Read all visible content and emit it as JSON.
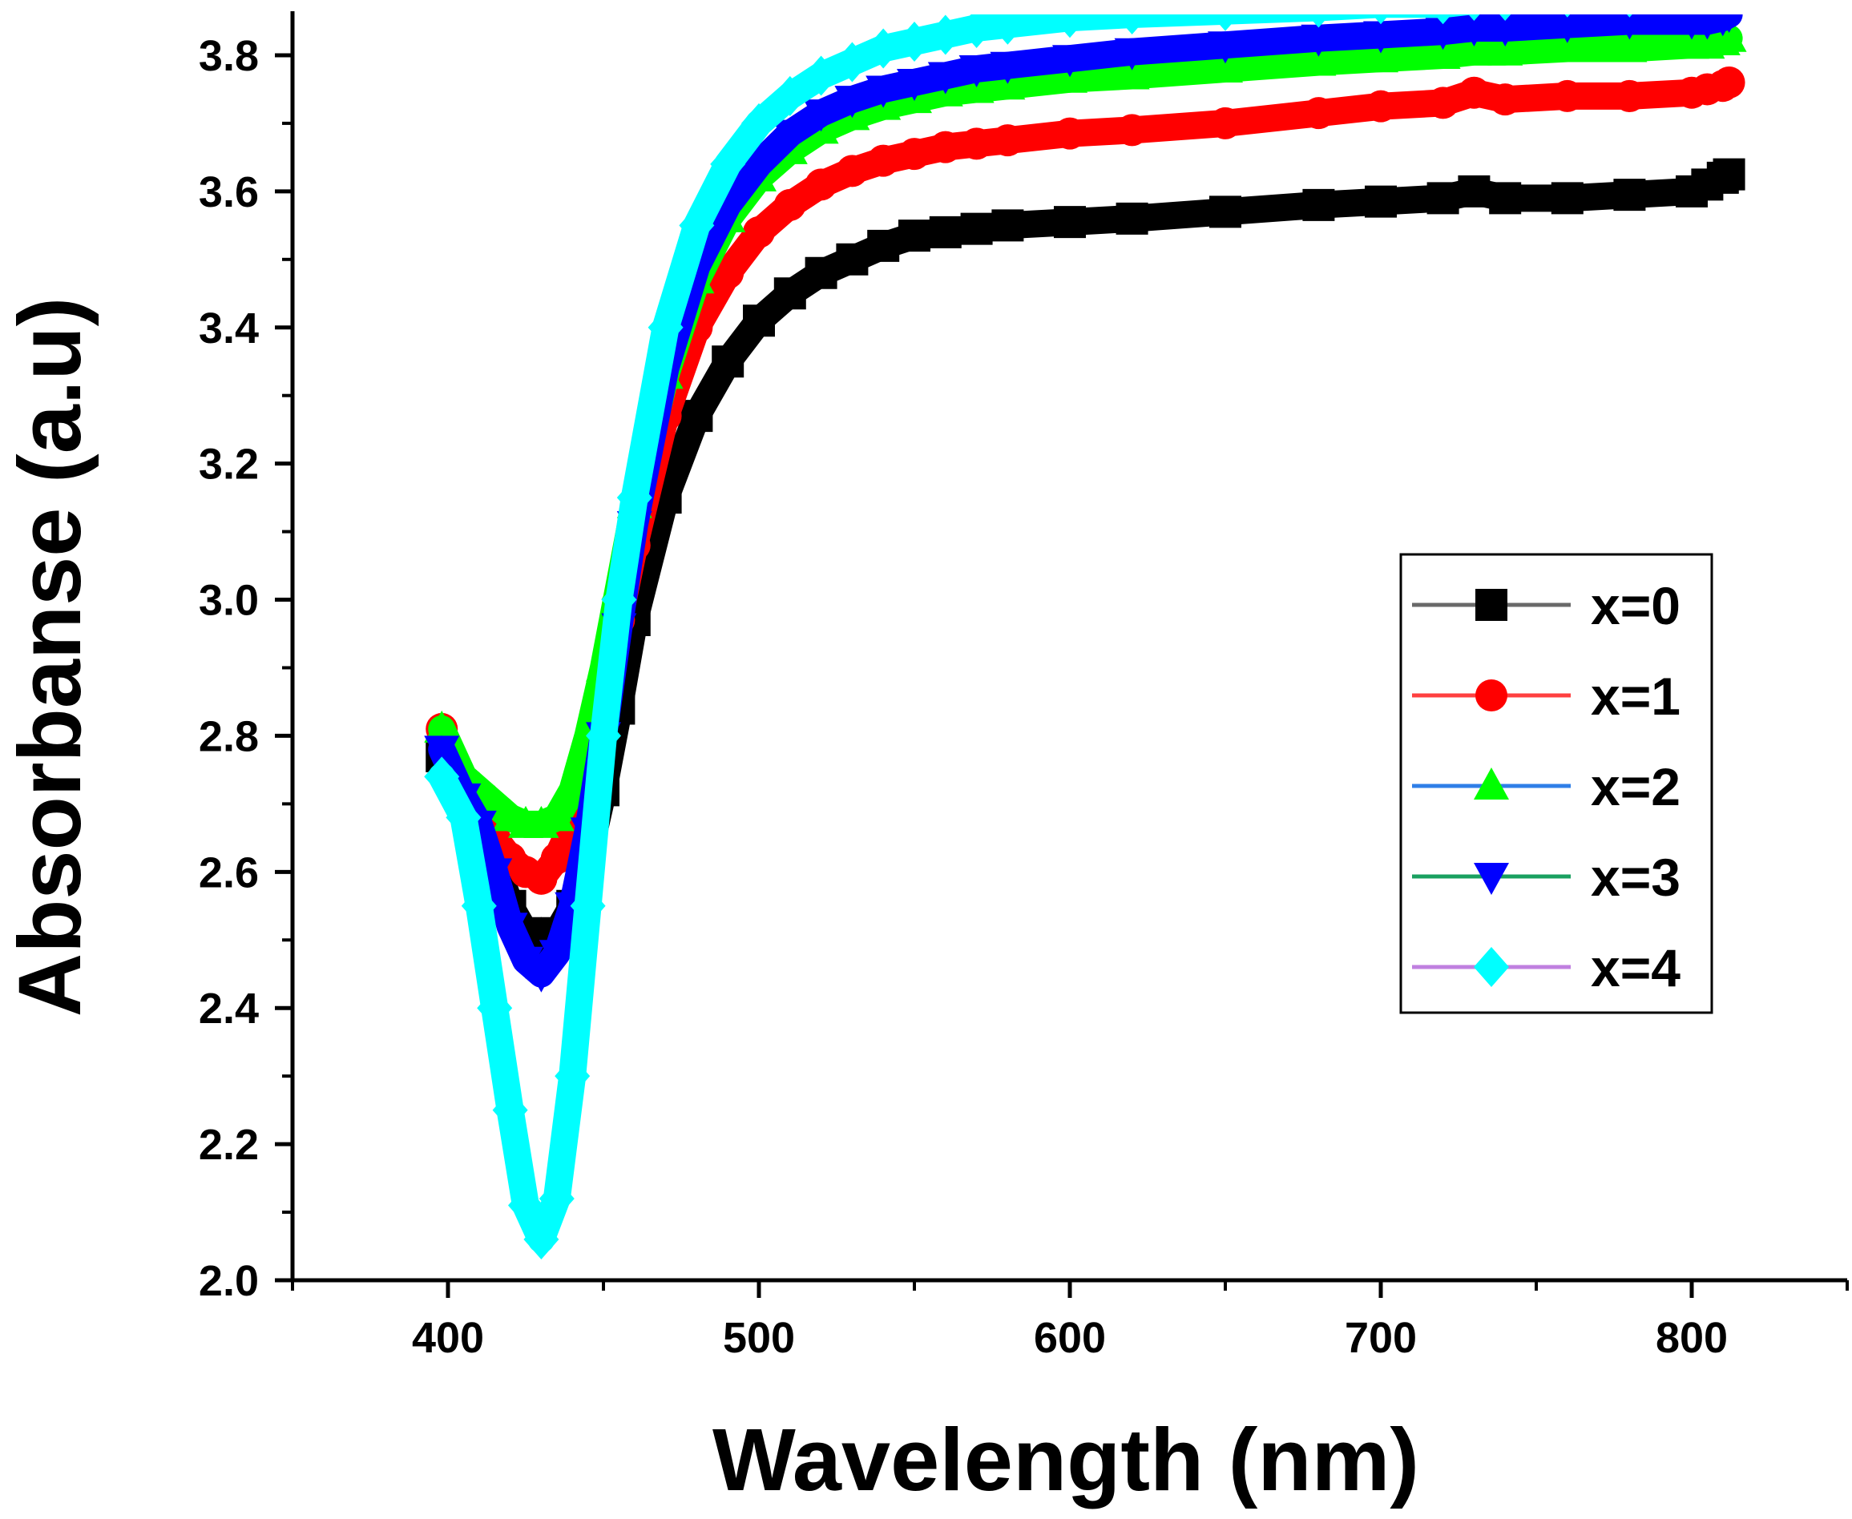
{
  "chart_data": {
    "type": "line",
    "xlabel": "Wavelength (nm)",
    "ylabel": "Absorbanse (a.u)",
    "xlim": [
      350,
      850
    ],
    "ylim": [
      2.0,
      3.86
    ],
    "xticks": [
      "400",
      "500",
      "600",
      "700",
      "800"
    ],
    "yticks": [
      "2.0",
      "2.2",
      "2.4",
      "2.6",
      "2.8",
      "3.0",
      "3.2",
      "3.4",
      "3.6",
      "3.8"
    ],
    "legend_position": "right",
    "x": [
      398,
      405,
      410,
      415,
      420,
      425,
      430,
      435,
      440,
      445,
      450,
      455,
      460,
      470,
      480,
      490,
      500,
      510,
      520,
      530,
      540,
      550,
      560,
      570,
      580,
      600,
      620,
      650,
      680,
      700,
      720,
      730,
      740,
      760,
      780,
      800,
      805,
      810,
      812
    ],
    "series": [
      {
        "name": "x=0",
        "color": "#000000",
        "marker": "square",
        "values": [
          2.77,
          2.72,
          2.68,
          2.62,
          2.55,
          2.51,
          2.49,
          2.51,
          2.55,
          2.62,
          2.72,
          2.84,
          2.97,
          3.15,
          3.27,
          3.35,
          3.41,
          3.45,
          3.48,
          3.5,
          3.52,
          3.535,
          3.54,
          3.545,
          3.55,
          3.555,
          3.56,
          3.57,
          3.58,
          3.585,
          3.59,
          3.6,
          3.59,
          3.59,
          3.595,
          3.6,
          3.61,
          3.62,
          3.625
        ]
      },
      {
        "name": "x=1",
        "color": "#ff0000",
        "marker": "circle",
        "values": [
          2.81,
          2.72,
          2.68,
          2.65,
          2.62,
          2.6,
          2.59,
          2.62,
          2.67,
          2.74,
          2.84,
          2.97,
          3.08,
          3.27,
          3.4,
          3.48,
          3.54,
          3.58,
          3.61,
          3.63,
          3.645,
          3.655,
          3.665,
          3.67,
          3.675,
          3.685,
          3.69,
          3.7,
          3.715,
          3.725,
          3.73,
          3.745,
          3.735,
          3.74,
          3.74,
          3.745,
          3.75,
          3.755,
          3.76
        ]
      },
      {
        "name": "x=2",
        "color": "#00ff00",
        "marker": "triangle-up",
        "values": [
          2.81,
          2.74,
          2.72,
          2.7,
          2.68,
          2.67,
          2.67,
          2.68,
          2.72,
          2.8,
          2.9,
          3.02,
          3.14,
          3.33,
          3.47,
          3.56,
          3.62,
          3.66,
          3.69,
          3.71,
          3.725,
          3.735,
          3.745,
          3.75,
          3.755,
          3.765,
          3.77,
          3.78,
          3.79,
          3.795,
          3.8,
          3.805,
          3.805,
          3.81,
          3.81,
          3.815,
          3.815,
          3.82,
          3.825
        ]
      },
      {
        "name": "x=3",
        "color": "#0000ff",
        "marker": "triangle-down",
        "values": [
          2.78,
          2.71,
          2.67,
          2.6,
          2.52,
          2.47,
          2.45,
          2.48,
          2.55,
          2.66,
          2.8,
          2.96,
          3.11,
          3.34,
          3.49,
          3.58,
          3.64,
          3.685,
          3.715,
          3.735,
          3.75,
          3.76,
          3.77,
          3.78,
          3.785,
          3.795,
          3.805,
          3.815,
          3.825,
          3.83,
          3.835,
          3.84,
          3.84,
          3.845,
          3.85,
          3.85,
          3.85,
          3.855,
          3.86
        ]
      },
      {
        "name": "x=4",
        "color": "#00ffff",
        "marker": "diamond",
        "values": [
          2.74,
          2.68,
          2.55,
          2.4,
          2.25,
          2.11,
          2.06,
          2.12,
          2.3,
          2.55,
          2.8,
          3.0,
          3.15,
          3.4,
          3.55,
          3.64,
          3.7,
          3.74,
          3.77,
          3.79,
          3.81,
          3.82,
          3.83,
          3.84,
          3.845,
          3.855,
          3.86,
          3.865,
          3.87,
          3.875,
          3.875,
          3.88,
          3.88,
          3.885,
          3.885,
          3.89,
          3.89,
          3.89,
          3.89
        ]
      }
    ],
    "legend": [
      {
        "label": "x=0",
        "line_color": "#696969",
        "marker": "square",
        "marker_color": "#000000"
      },
      {
        "label": "x=1",
        "line_color": "#ff4040",
        "marker": "circle",
        "marker_color": "#ff0000"
      },
      {
        "label": "x=2",
        "line_color": "#2f7fe8",
        "marker": "triangle-up",
        "marker_color": "#00ff00"
      },
      {
        "label": "x=3",
        "line_color": "#1aa060",
        "marker": "triangle-down",
        "marker_color": "#0000ff"
      },
      {
        "label": "x=4",
        "line_color": "#c080e0",
        "marker": "diamond",
        "marker_color": "#00ffff"
      }
    ]
  }
}
